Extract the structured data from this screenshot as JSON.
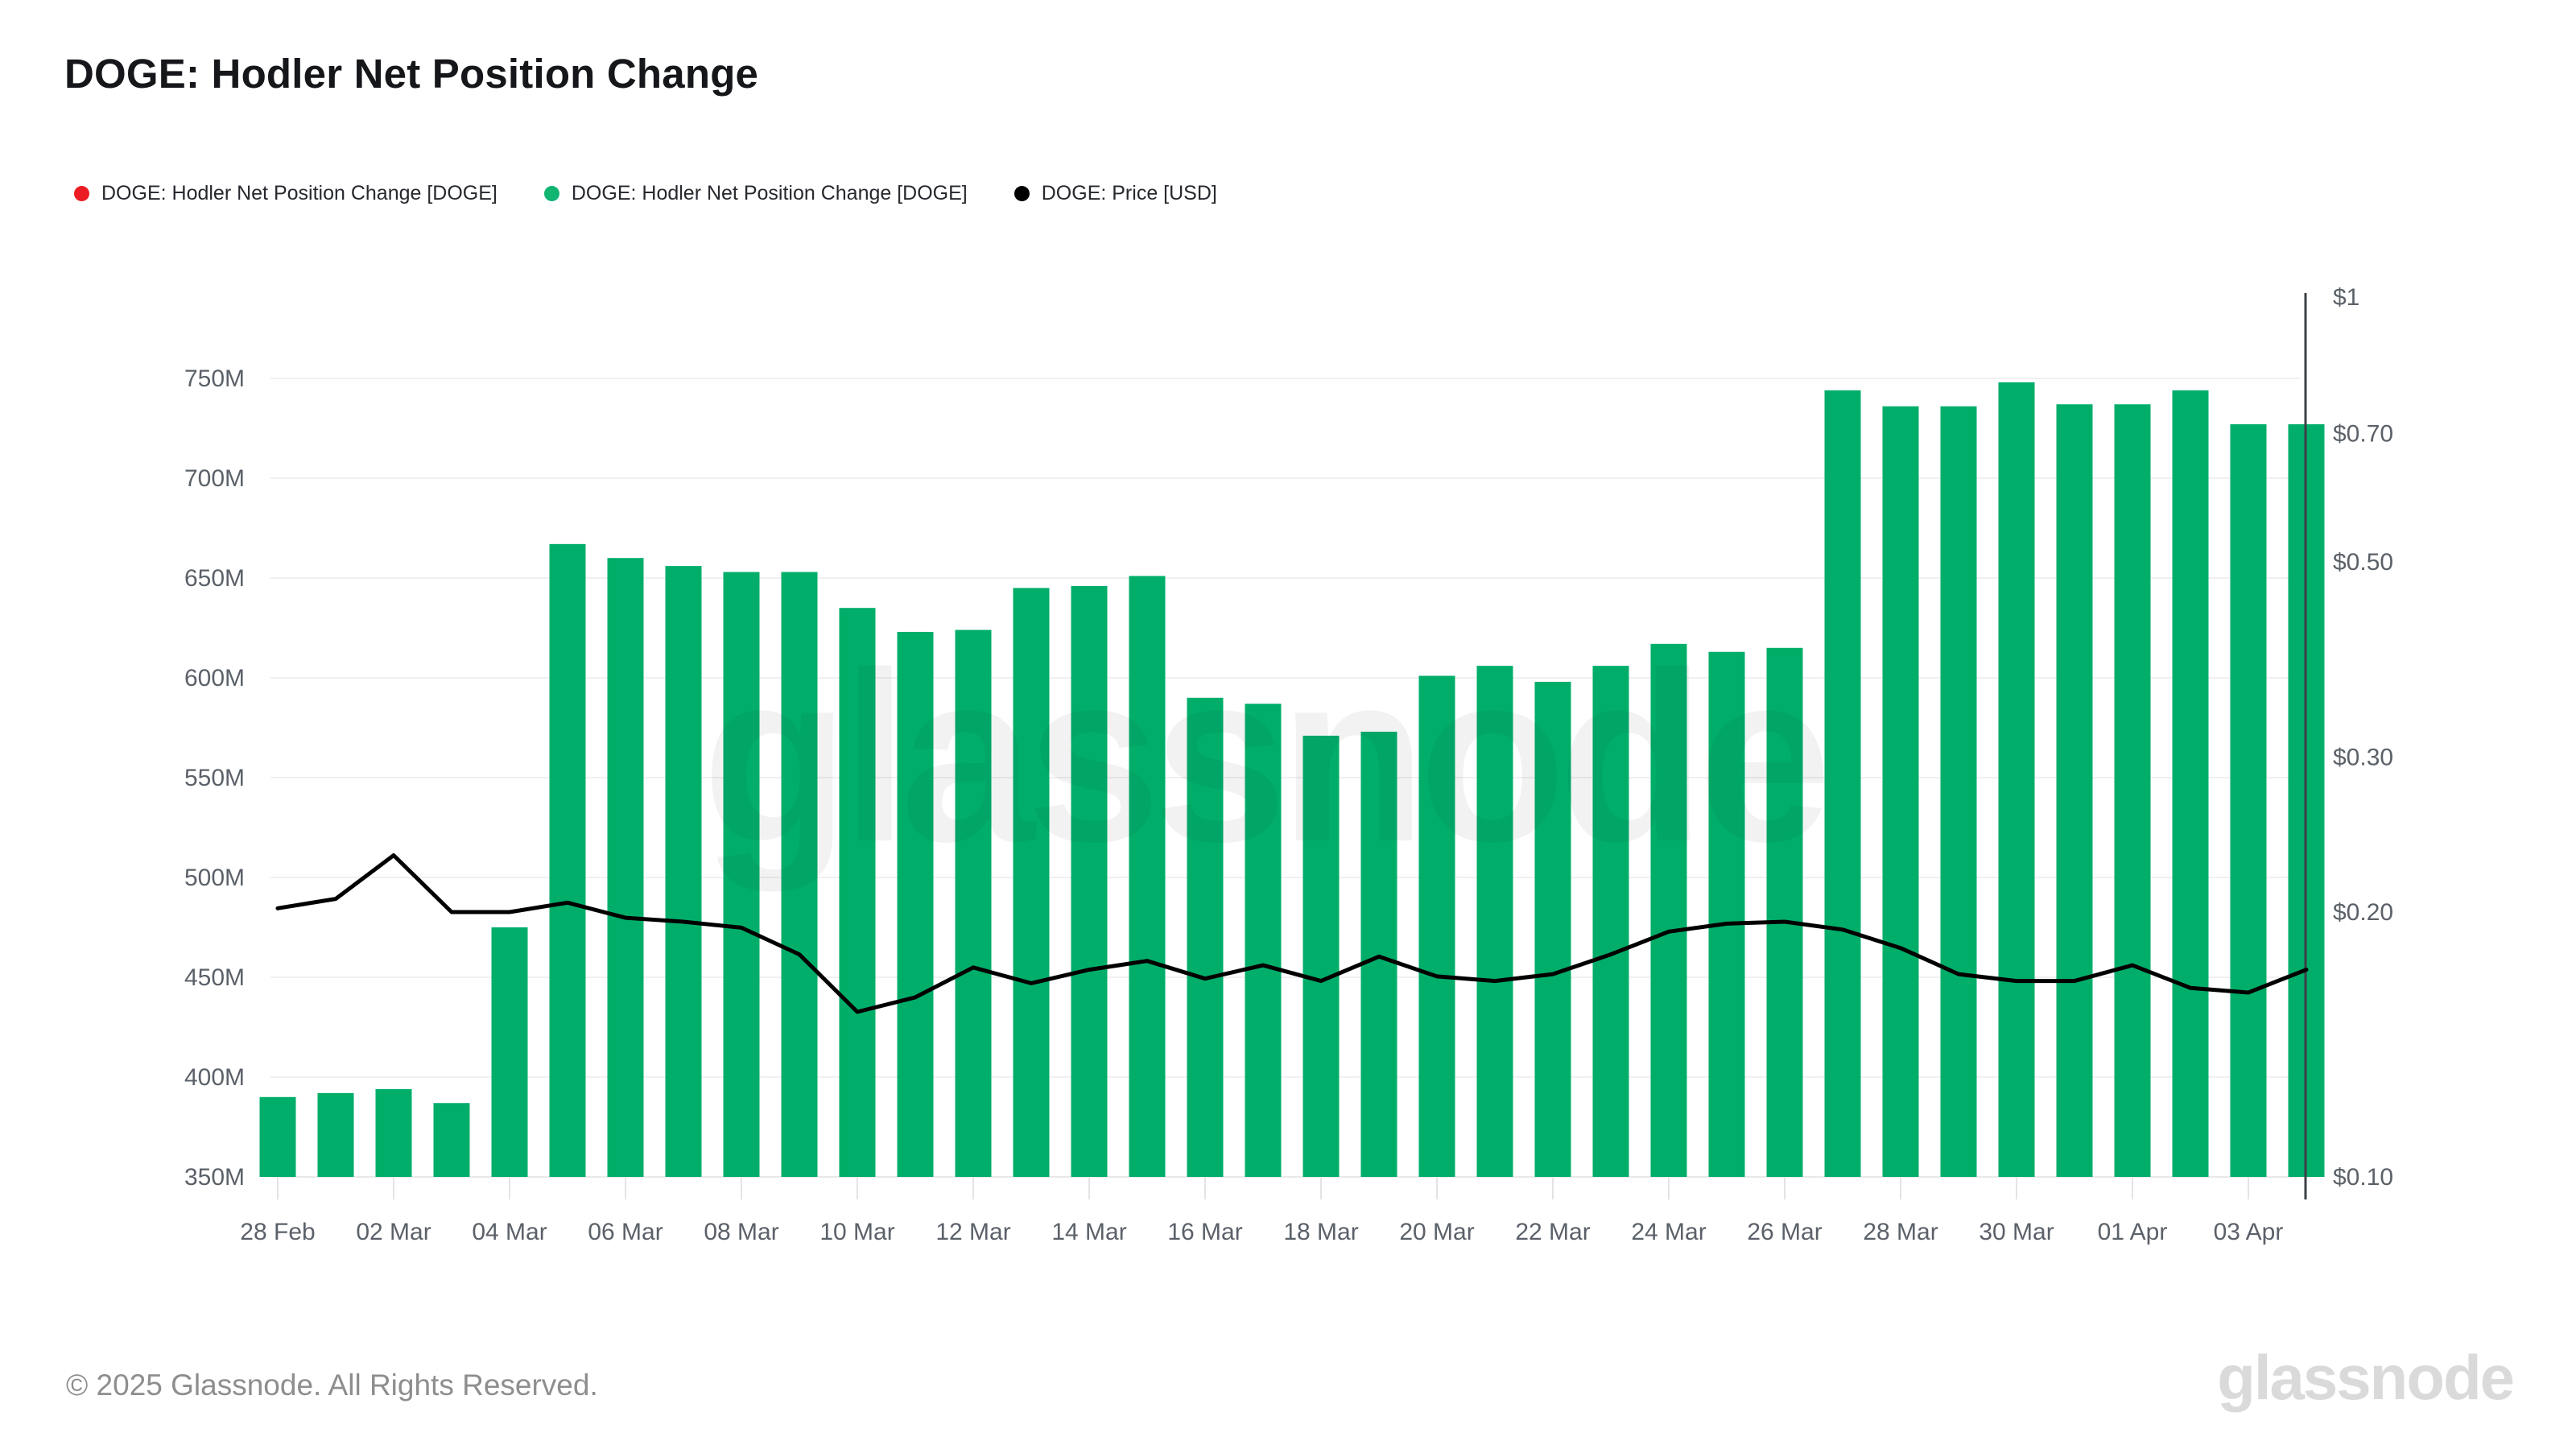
{
  "header": {
    "title": "DOGE: Hodler Net Position Change"
  },
  "legend": [
    {
      "label": "DOGE: Hodler Net Position Change [DOGE]",
      "color": "#ec1c24"
    },
    {
      "label": "DOGE: Hodler Net Position Change [DOGE]",
      "color": "#0fb571"
    },
    {
      "label": "DOGE: Price [USD]",
      "color": "#000000"
    }
  ],
  "colors": {
    "bar_green": "#00ae6a",
    "price_line_black": "#000000",
    "grid_line": "#f0f0f2",
    "baseline": "#e9e9ec",
    "tick_mark": "#e4e4e7",
    "axis_text": "#5b6169",
    "right_axis_line": "#3b3f46"
  },
  "watermark": "glassnode",
  "footer": {
    "copyright": "© 2025 Glassnode. All Rights Reserved.",
    "logo": "glassnode"
  },
  "chart_data": {
    "type": "bar",
    "title": "DOGE: Hodler Net Position Change",
    "grid": "horizontal",
    "legend_position": "top-left",
    "x": [
      "28 Feb",
      "01 Mar",
      "02 Mar",
      "03 Mar",
      "04 Mar",
      "05 Mar",
      "06 Mar",
      "07 Mar",
      "08 Mar",
      "09 Mar",
      "10 Mar",
      "11 Mar",
      "12 Mar",
      "13 Mar",
      "14 Mar",
      "15 Mar",
      "16 Mar",
      "17 Mar",
      "18 Mar",
      "19 Mar",
      "20 Mar",
      "21 Mar",
      "22 Mar",
      "23 Mar",
      "24 Mar",
      "25 Mar",
      "26 Mar",
      "27 Mar",
      "28 Mar",
      "29 Mar",
      "30 Mar",
      "31 Mar",
      "01 Apr",
      "02 Apr",
      "03 Apr",
      "04 Apr"
    ],
    "x_tick_labels": [
      "28 Feb",
      "02 Mar",
      "04 Mar",
      "06 Mar",
      "08 Mar",
      "10 Mar",
      "12 Mar",
      "14 Mar",
      "16 Mar",
      "18 Mar",
      "20 Mar",
      "22 Mar",
      "24 Mar",
      "26 Mar",
      "28 Mar",
      "30 Mar",
      "01 Apr",
      "03 Apr"
    ],
    "series": [
      {
        "name": "DOGE: Hodler Net Position Change [DOGE]",
        "type": "bar",
        "axis": "left",
        "unit": "million DOGE",
        "color": "#00ae6a",
        "values": [
          390,
          392,
          394,
          387,
          475,
          667,
          660,
          656,
          653,
          653,
          635,
          623,
          624,
          645,
          646,
          651,
          590,
          587,
          571,
          573,
          601,
          606,
          598,
          606,
          617,
          613,
          615,
          744,
          736,
          736,
          748,
          737,
          737,
          744,
          727,
          727
        ]
      },
      {
        "name": "DOGE: Price [USD]",
        "type": "line",
        "axis": "right",
        "unit": "USD",
        "color": "#000000",
        "values": [
          0.202,
          0.207,
          0.232,
          0.2,
          0.2,
          0.205,
          0.197,
          0.195,
          0.192,
          0.179,
          0.154,
          0.16,
          0.173,
          0.166,
          0.172,
          0.176,
          0.168,
          0.174,
          0.167,
          0.178,
          0.169,
          0.167,
          0.17,
          0.179,
          0.19,
          0.194,
          0.195,
          0.191,
          0.182,
          0.17,
          0.167,
          0.167,
          0.174,
          0.164,
          0.162,
          0.172
        ]
      }
    ],
    "left_axis": {
      "unit": "million DOGE",
      "scale": "linear",
      "min": 350,
      "max": 750,
      "tick_values": [
        350,
        400,
        450,
        500,
        550,
        600,
        650,
        700,
        750
      ],
      "tick_labels": [
        "350M",
        "400M",
        "450M",
        "500M",
        "550M",
        "600M",
        "650M",
        "700M",
        "750M"
      ]
    },
    "right_axis": {
      "unit": "USD",
      "scale": "log",
      "min": 0.1,
      "max": 1,
      "tick_values": [
        0.1,
        0.2,
        0.3,
        0.5,
        0.7,
        1
      ],
      "tick_labels": [
        "$0.10",
        "$0.20",
        "$0.30",
        "$0.50",
        "$0.70",
        "$1"
      ]
    }
  }
}
